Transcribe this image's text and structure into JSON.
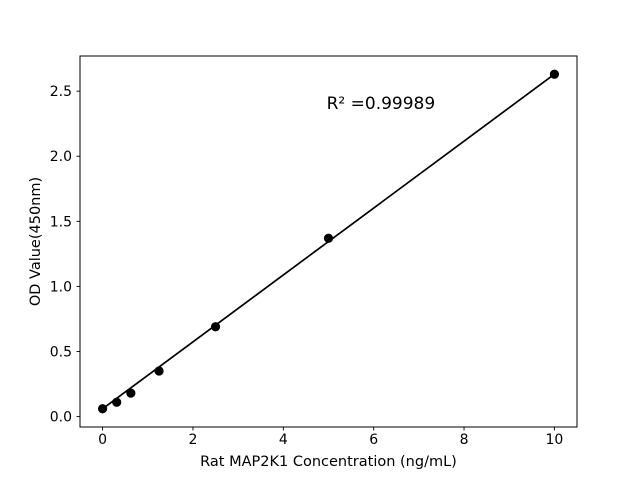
{
  "chart_data": {
    "type": "scatter",
    "title": "",
    "xlabel": "Rat MAP2K1 Concentration (ng/mL)",
    "ylabel": "OD Value(450nm)",
    "annotation": "R² =0.99989",
    "annotation_xy": [
      6.16,
      2.41
    ],
    "x": [
      0,
      0.3125,
      0.625,
      1.25,
      2.5,
      5,
      10
    ],
    "y": [
      0.06,
      0.11,
      0.18,
      0.35,
      0.69,
      1.37,
      2.63
    ],
    "fit_line": {
      "x1": 0,
      "y1": 0.06,
      "x2": 10,
      "y2": 2.63
    },
    "xticks": [
      0,
      2,
      4,
      6,
      8,
      10
    ],
    "xtick_labels": [
      "0",
      "2",
      "4",
      "6",
      "8",
      "10"
    ],
    "yticks": [
      0.0,
      0.5,
      1.0,
      1.5,
      2.0,
      2.5
    ],
    "ytick_labels": [
      "0.0",
      "0.5",
      "1.0",
      "1.5",
      "2.0",
      "2.5"
    ],
    "xlim": [
      -0.5,
      10.5
    ],
    "ylim": [
      -0.08,
      2.77
    ],
    "grid": false,
    "legend": null,
    "marker_color": "#000000",
    "line_color": "#000000",
    "axis_color": "#000000",
    "background_color": "#ffffff"
  }
}
